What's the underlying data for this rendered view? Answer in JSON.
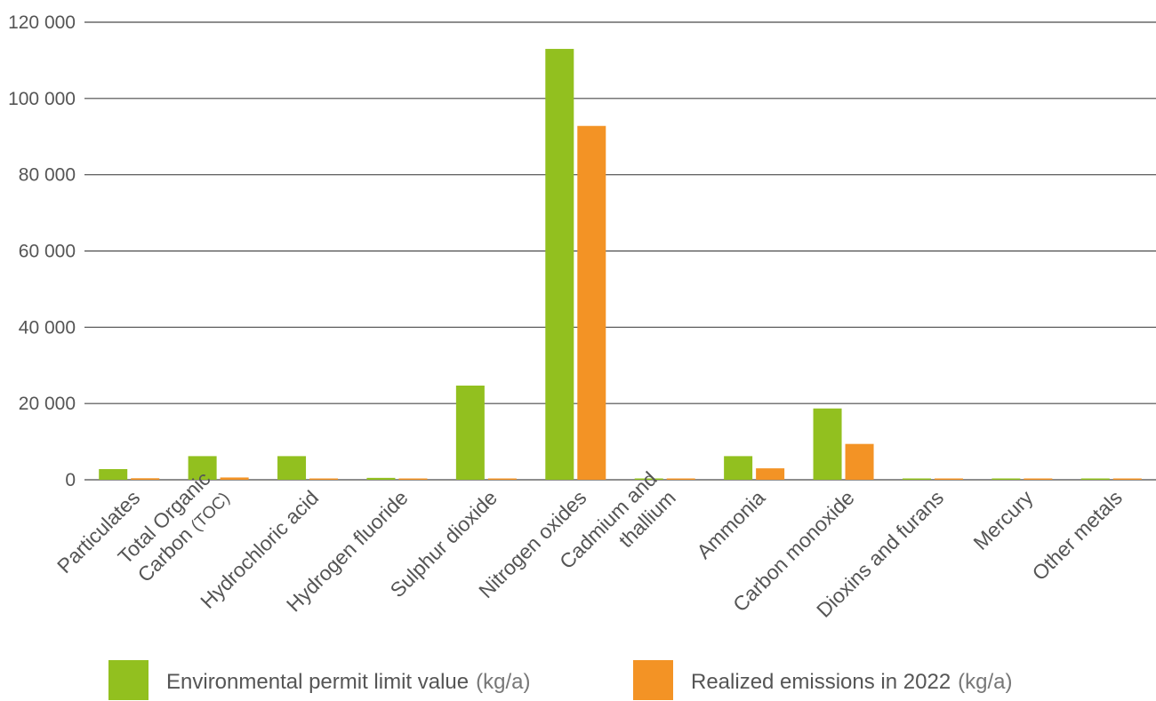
{
  "chart_data": {
    "type": "bar",
    "title": "",
    "xlabel": "",
    "ylabel": "",
    "ylim": [
      0,
      120000
    ],
    "y_ticks": [
      {
        "value": 0,
        "label": "0"
      },
      {
        "value": 20000,
        "label": "20 000"
      },
      {
        "value": 40000,
        "label": "40 000"
      },
      {
        "value": 60000,
        "label": "60 000"
      },
      {
        "value": 80000,
        "label": "80 000"
      },
      {
        "value": 100000,
        "label": "100 000"
      },
      {
        "value": 120000,
        "label": "120 000"
      }
    ],
    "grid": true,
    "legend_position": "bottom",
    "categories": [
      {
        "lines": [
          {
            "text": "Particulates"
          }
        ]
      },
      {
        "lines": [
          {
            "text": "Total Organic"
          },
          {
            "text": "Carbon ",
            "suffix": "(TOC)"
          }
        ]
      },
      {
        "lines": [
          {
            "text": "Hydrochloric acid"
          }
        ]
      },
      {
        "lines": [
          {
            "text": "Hydrogen fluoride"
          }
        ]
      },
      {
        "lines": [
          {
            "text": "Sulphur dioxide"
          }
        ]
      },
      {
        "lines": [
          {
            "text": "Nitrogen oxides"
          }
        ]
      },
      {
        "lines": [
          {
            "text": "Cadmium and"
          },
          {
            "text": "thallium"
          }
        ]
      },
      {
        "lines": [
          {
            "text": "Ammonia"
          }
        ]
      },
      {
        "lines": [
          {
            "text": "Carbon monoxide"
          }
        ]
      },
      {
        "lines": [
          {
            "text": "Dioxins and furans"
          }
        ]
      },
      {
        "lines": [
          {
            "text": "Mercury"
          }
        ]
      },
      {
        "lines": [
          {
            "text": "Other metals"
          }
        ]
      }
    ],
    "series": [
      {
        "name": "Environmental permit limit value",
        "unit": "(kg/a)",
        "color": "#92c01f",
        "values": [
          2800,
          6200,
          6200,
          500,
          24700,
          113000,
          100,
          6200,
          18700,
          200,
          10,
          100
        ]
      },
      {
        "name": "Realized emissions in 2022",
        "unit": "(kg/a)",
        "color": "#f39325",
        "values": [
          400,
          600,
          300,
          30,
          10,
          92800,
          5,
          3000,
          9400,
          5,
          3,
          50
        ]
      }
    ]
  }
}
